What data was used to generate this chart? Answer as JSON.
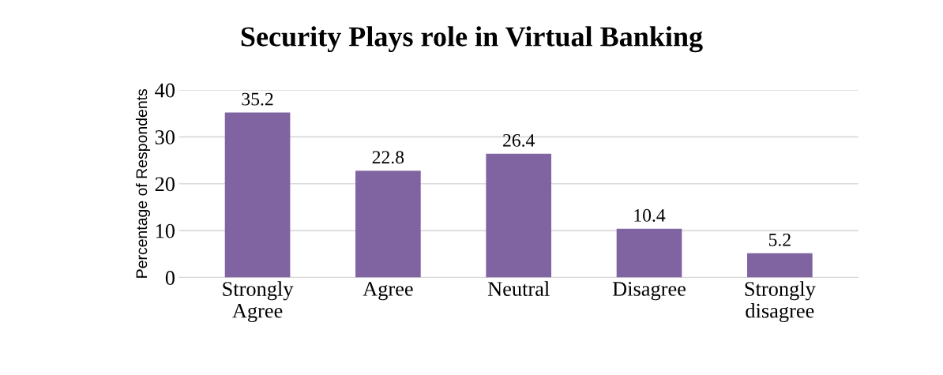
{
  "chart_data": {
    "type": "bar",
    "title": "Security Plays role in Virtual Banking",
    "ylabel": "Percentage of Respondents",
    "categories": [
      "Strongly\nAgree",
      "Agree",
      "Neutral",
      "Disagree",
      "Strongly\ndisagree"
    ],
    "values": [
      35.2,
      22.8,
      26.4,
      10.4,
      5.2
    ],
    "color": "#8064a2",
    "ylim": [
      0,
      40
    ],
    "yticks": [
      0,
      10,
      20,
      30,
      40
    ],
    "grid": "y",
    "data_labels": true
  }
}
